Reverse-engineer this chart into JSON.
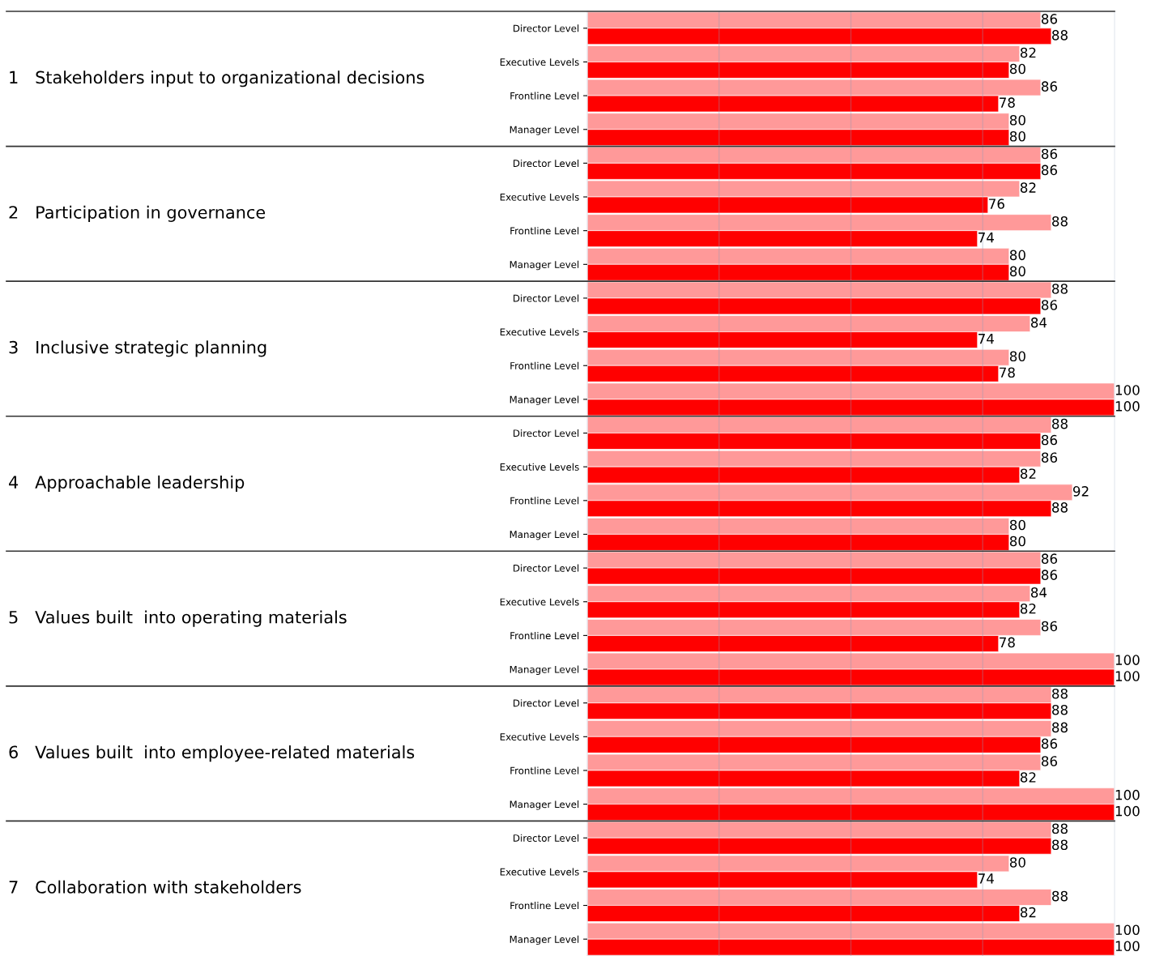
{
  "chart_data": {
    "type": "bar",
    "orientation": "horizontal",
    "categories": [
      "Director Level",
      "Executive Levels",
      "Frontline Level",
      "Manager Level",
      "Director Level",
      "Executive Levels",
      "Frontline Level",
      "Manager Level",
      "Director Level",
      "Executive Levels",
      "Frontline Level",
      "Manager Level",
      "Director Level",
      "Executive Levels",
      "Frontline Level",
      "Manager Level",
      "Director Level",
      "Executive Levels",
      "Frontline Level",
      "Manager Level",
      "Director Level",
      "Executive Levels",
      "Frontline Level",
      "Manager Level",
      "Director Level",
      "Executive Levels",
      "Frontline Level",
      "Manager Level"
    ],
    "series": [
      {
        "color": "#ff9999",
        "values": [
          86,
          82,
          86,
          80,
          86,
          82,
          88,
          80,
          88,
          84,
          80,
          100,
          88,
          86,
          92,
          80,
          86,
          84,
          86,
          100,
          88,
          88,
          86,
          100,
          88,
          80,
          88,
          100
        ]
      },
      {
        "color": "#ff0000",
        "values": [
          88,
          80,
          78,
          80,
          86,
          76,
          74,
          80,
          86,
          74,
          78,
          100,
          86,
          82,
          88,
          80,
          86,
          82,
          78,
          100,
          88,
          86,
          82,
          100,
          88,
          74,
          82,
          100
        ]
      }
    ],
    "annotations": [
      "1   Stakeholders input to organizational decisions",
      "2   Participation in governance",
      "3   Inclusive strategic planning",
      "4   Approachable leadership",
      "5   Values built  into operating materials",
      "6   Values built  into employee-related materials",
      "7   Collaboration with stakeholders"
    ],
    "xlim": [
      0,
      100
    ],
    "xticks": [
      {
        "value": 25,
        "label": null
      },
      {
        "value": 50,
        "label": null
      },
      {
        "value": 75,
        "label": null
      }
    ],
    "grid": "x",
    "tick_labels": "y",
    "data_labels": true
  }
}
